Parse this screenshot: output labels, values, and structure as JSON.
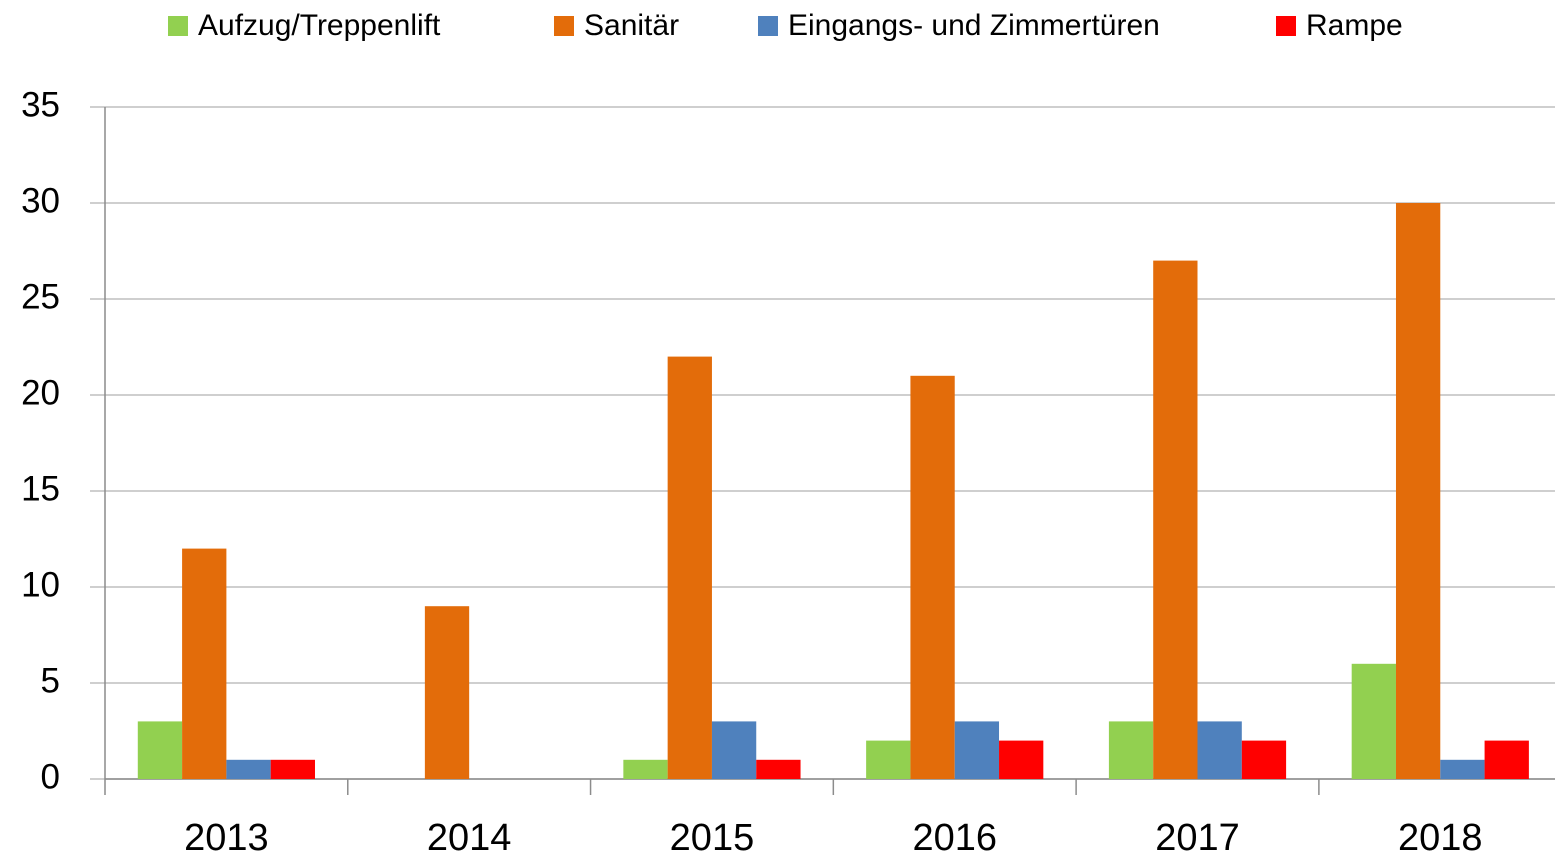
{
  "chart_data": {
    "type": "bar",
    "categories": [
      "2013",
      "2014",
      "2015",
      "2016",
      "2017",
      "2018"
    ],
    "series": [
      {
        "name": "Aufzug/Treppenlift",
        "color": "#92d050",
        "values": [
          3,
          0,
          1,
          2,
          3,
          6
        ]
      },
      {
        "name": "Sanitär",
        "color": "#e36c0a",
        "values": [
          12,
          9,
          22,
          21,
          27,
          30
        ]
      },
      {
        "name": "Eingangs- und Zimmertüren",
        "color": "#4f81bd",
        "values": [
          1,
          0,
          3,
          3,
          3,
          1
        ]
      },
      {
        "name": "Rampe",
        "color": "#ff0000",
        "values": [
          1,
          0,
          1,
          2,
          2,
          2
        ]
      }
    ],
    "ylim": [
      0,
      35
    ],
    "yticks": [
      0,
      5,
      10,
      15,
      20,
      25,
      30,
      35
    ],
    "grid": true,
    "legend": "top"
  }
}
